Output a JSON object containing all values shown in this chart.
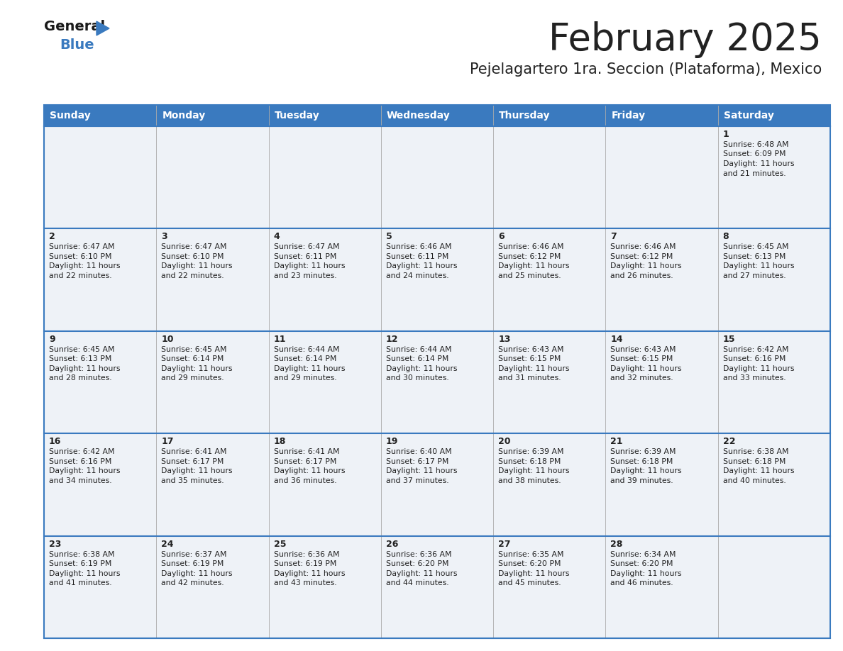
{
  "title": "February 2025",
  "subtitle": "Pejelagartero 1ra. Seccion (Plataforma), Mexico",
  "header_color": "#3a7abf",
  "header_text_color": "#ffffff",
  "days_of_week": [
    "Sunday",
    "Monday",
    "Tuesday",
    "Wednesday",
    "Thursday",
    "Friday",
    "Saturday"
  ],
  "bg_color": "#ffffff",
  "cell_bg": "#eef2f7",
  "text_color": "#222222",
  "border_color": "#3a7abf",
  "row_divider_color": "#3a7abf",
  "col_divider_color": "#aaaaaa",
  "calendar": [
    [
      null,
      null,
      null,
      null,
      null,
      null,
      {
        "day": 1,
        "sunrise": "6:48 AM",
        "sunset": "6:09 PM",
        "daylight": "11 hours",
        "daylight2": "and 21 minutes."
      }
    ],
    [
      {
        "day": 2,
        "sunrise": "6:47 AM",
        "sunset": "6:10 PM",
        "daylight": "11 hours",
        "daylight2": "and 22 minutes."
      },
      {
        "day": 3,
        "sunrise": "6:47 AM",
        "sunset": "6:10 PM",
        "daylight": "11 hours",
        "daylight2": "and 22 minutes."
      },
      {
        "day": 4,
        "sunrise": "6:47 AM",
        "sunset": "6:11 PM",
        "daylight": "11 hours",
        "daylight2": "and 23 minutes."
      },
      {
        "day": 5,
        "sunrise": "6:46 AM",
        "sunset": "6:11 PM",
        "daylight": "11 hours",
        "daylight2": "and 24 minutes."
      },
      {
        "day": 6,
        "sunrise": "6:46 AM",
        "sunset": "6:12 PM",
        "daylight": "11 hours",
        "daylight2": "and 25 minutes."
      },
      {
        "day": 7,
        "sunrise": "6:46 AM",
        "sunset": "6:12 PM",
        "daylight": "11 hours",
        "daylight2": "and 26 minutes."
      },
      {
        "day": 8,
        "sunrise": "6:45 AM",
        "sunset": "6:13 PM",
        "daylight": "11 hours",
        "daylight2": "and 27 minutes."
      }
    ],
    [
      {
        "day": 9,
        "sunrise": "6:45 AM",
        "sunset": "6:13 PM",
        "daylight": "11 hours",
        "daylight2": "and 28 minutes."
      },
      {
        "day": 10,
        "sunrise": "6:45 AM",
        "sunset": "6:14 PM",
        "daylight": "11 hours",
        "daylight2": "and 29 minutes."
      },
      {
        "day": 11,
        "sunrise": "6:44 AM",
        "sunset": "6:14 PM",
        "daylight": "11 hours",
        "daylight2": "and 29 minutes."
      },
      {
        "day": 12,
        "sunrise": "6:44 AM",
        "sunset": "6:14 PM",
        "daylight": "11 hours",
        "daylight2": "and 30 minutes."
      },
      {
        "day": 13,
        "sunrise": "6:43 AM",
        "sunset": "6:15 PM",
        "daylight": "11 hours",
        "daylight2": "and 31 minutes."
      },
      {
        "day": 14,
        "sunrise": "6:43 AM",
        "sunset": "6:15 PM",
        "daylight": "11 hours",
        "daylight2": "and 32 minutes."
      },
      {
        "day": 15,
        "sunrise": "6:42 AM",
        "sunset": "6:16 PM",
        "daylight": "11 hours",
        "daylight2": "and 33 minutes."
      }
    ],
    [
      {
        "day": 16,
        "sunrise": "6:42 AM",
        "sunset": "6:16 PM",
        "daylight": "11 hours",
        "daylight2": "and 34 minutes."
      },
      {
        "day": 17,
        "sunrise": "6:41 AM",
        "sunset": "6:17 PM",
        "daylight": "11 hours",
        "daylight2": "and 35 minutes."
      },
      {
        "day": 18,
        "sunrise": "6:41 AM",
        "sunset": "6:17 PM",
        "daylight": "11 hours",
        "daylight2": "and 36 minutes."
      },
      {
        "day": 19,
        "sunrise": "6:40 AM",
        "sunset": "6:17 PM",
        "daylight": "11 hours",
        "daylight2": "and 37 minutes."
      },
      {
        "day": 20,
        "sunrise": "6:39 AM",
        "sunset": "6:18 PM",
        "daylight": "11 hours",
        "daylight2": "and 38 minutes."
      },
      {
        "day": 21,
        "sunrise": "6:39 AM",
        "sunset": "6:18 PM",
        "daylight": "11 hours",
        "daylight2": "and 39 minutes."
      },
      {
        "day": 22,
        "sunrise": "6:38 AM",
        "sunset": "6:18 PM",
        "daylight": "11 hours",
        "daylight2": "and 40 minutes."
      }
    ],
    [
      {
        "day": 23,
        "sunrise": "6:38 AM",
        "sunset": "6:19 PM",
        "daylight": "11 hours",
        "daylight2": "and 41 minutes."
      },
      {
        "day": 24,
        "sunrise": "6:37 AM",
        "sunset": "6:19 PM",
        "daylight": "11 hours",
        "daylight2": "and 42 minutes."
      },
      {
        "day": 25,
        "sunrise": "6:36 AM",
        "sunset": "6:19 PM",
        "daylight": "11 hours",
        "daylight2": "and 43 minutes."
      },
      {
        "day": 26,
        "sunrise": "6:36 AM",
        "sunset": "6:20 PM",
        "daylight": "11 hours",
        "daylight2": "and 44 minutes."
      },
      {
        "day": 27,
        "sunrise": "6:35 AM",
        "sunset": "6:20 PM",
        "daylight": "11 hours",
        "daylight2": "and 45 minutes."
      },
      {
        "day": 28,
        "sunrise": "6:34 AM",
        "sunset": "6:20 PM",
        "daylight": "11 hours",
        "daylight2": "and 46 minutes."
      },
      null
    ]
  ],
  "logo_general_color": "#1a1a1a",
  "logo_blue_color": "#3a7abf",
  "title_fontsize": 38,
  "subtitle_fontsize": 15,
  "header_fontsize": 10,
  "day_num_fontsize": 9,
  "cell_text_fontsize": 7.8
}
